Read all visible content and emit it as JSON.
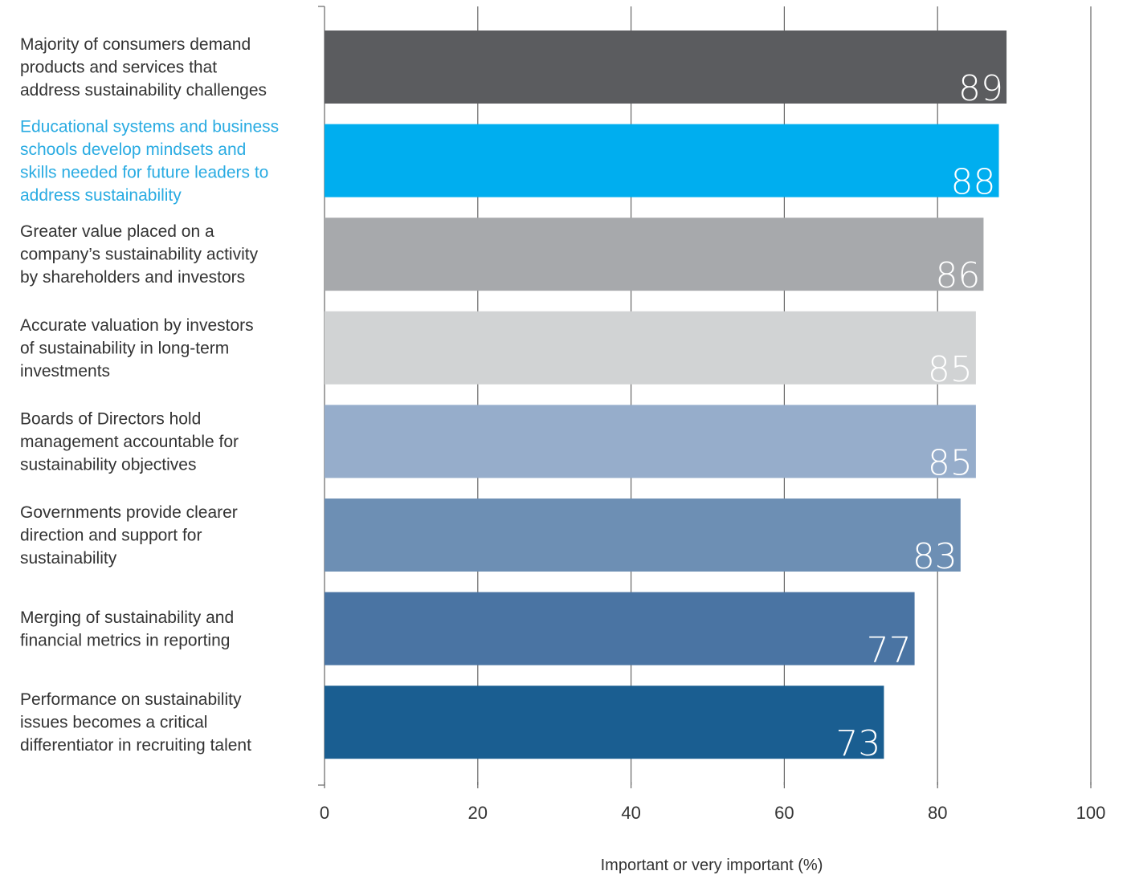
{
  "chart_data": {
    "type": "bar",
    "orientation": "horizontal",
    "categories": [
      [
        "Majority of consumers demand",
        "products and services that",
        "address sustainability challenges"
      ],
      [
        "Educational systems and business",
        "schools develop mindsets and",
        "skills needed for future leaders to",
        "address sustainability"
      ],
      [
        "Greater value placed on a",
        "company’s sustainability activity",
        "by shareholders and investors"
      ],
      [
        "Accurate valuation by investors",
        "of sustainability in long-term",
        "investments"
      ],
      [
        "Boards of Directors hold",
        "management accountable for",
        "sustainability objectives"
      ],
      [
        "Governments provide clearer",
        "direction and support for",
        "sustainability"
      ],
      [
        "Merging of sustainability and",
        "financial metrics in reporting"
      ],
      [
        "Performance on sustainability",
        "issues becomes a critical",
        "differentiator in recruiting talent"
      ]
    ],
    "values": [
      89,
      88,
      86,
      85,
      85,
      83,
      77,
      73
    ],
    "bar_colors": [
      "#5b5c5f",
      "#00aeef",
      "#a7a9ac",
      "#d1d3d4",
      "#96adcb",
      "#6d8fb4",
      "#4a74a3",
      "#1a5e91"
    ],
    "label_colors": [
      "#333333",
      "#29abe2",
      "#333333",
      "#333333",
      "#333333",
      "#333333",
      "#333333",
      "#333333"
    ],
    "xlim": [
      0,
      100
    ],
    "xticks": [
      0,
      20,
      40,
      60,
      80,
      100
    ],
    "xlabel": "Important or very important (%)",
    "grid": true,
    "grid_color": "#666666"
  }
}
